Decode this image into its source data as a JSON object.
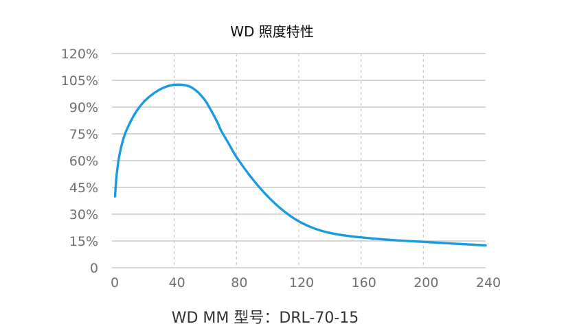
{
  "chart_data": {
    "type": "line",
    "title": "WD 照度特性",
    "xlabel": "WD MM 型号：DRL-70-15",
    "ylabel": "",
    "xlim": [
      0,
      240
    ],
    "ylim": [
      0,
      120
    ],
    "x_ticks": [
      "0",
      "40",
      "80",
      "120",
      "160",
      "200",
      "240"
    ],
    "y_ticks": [
      "0",
      "15%",
      "30%",
      "45%",
      "60%",
      "75%",
      "90%",
      "105%",
      "120%"
    ],
    "grid": {
      "horizontal": true,
      "horizontal_style": "solid",
      "vertical": true,
      "vertical_style": "dashed"
    },
    "colors": {
      "line": "#1a9be0",
      "grid": "#c8c8c8",
      "tick": "#6f6f6f"
    },
    "series": [
      {
        "x": [
          2,
          3,
          5,
          8,
          12,
          16,
          20,
          25,
          30,
          35,
          40,
          45,
          50,
          55,
          60,
          65,
          68,
          70,
          75,
          80,
          90,
          100,
          110,
          120,
          130,
          140,
          150,
          160,
          180,
          200,
          220,
          240
        ],
        "y": [
          40,
          52,
          64,
          74,
          82,
          88,
          92.5,
          96.5,
          99.5,
          101.5,
          102.5,
          102.5,
          101.5,
          98.5,
          93.5,
          86,
          81,
          77,
          69.5,
          62,
          50,
          40,
          32,
          26,
          22,
          19.5,
          18,
          17,
          15.5,
          14.5,
          13.5,
          12.5
        ]
      }
    ]
  }
}
